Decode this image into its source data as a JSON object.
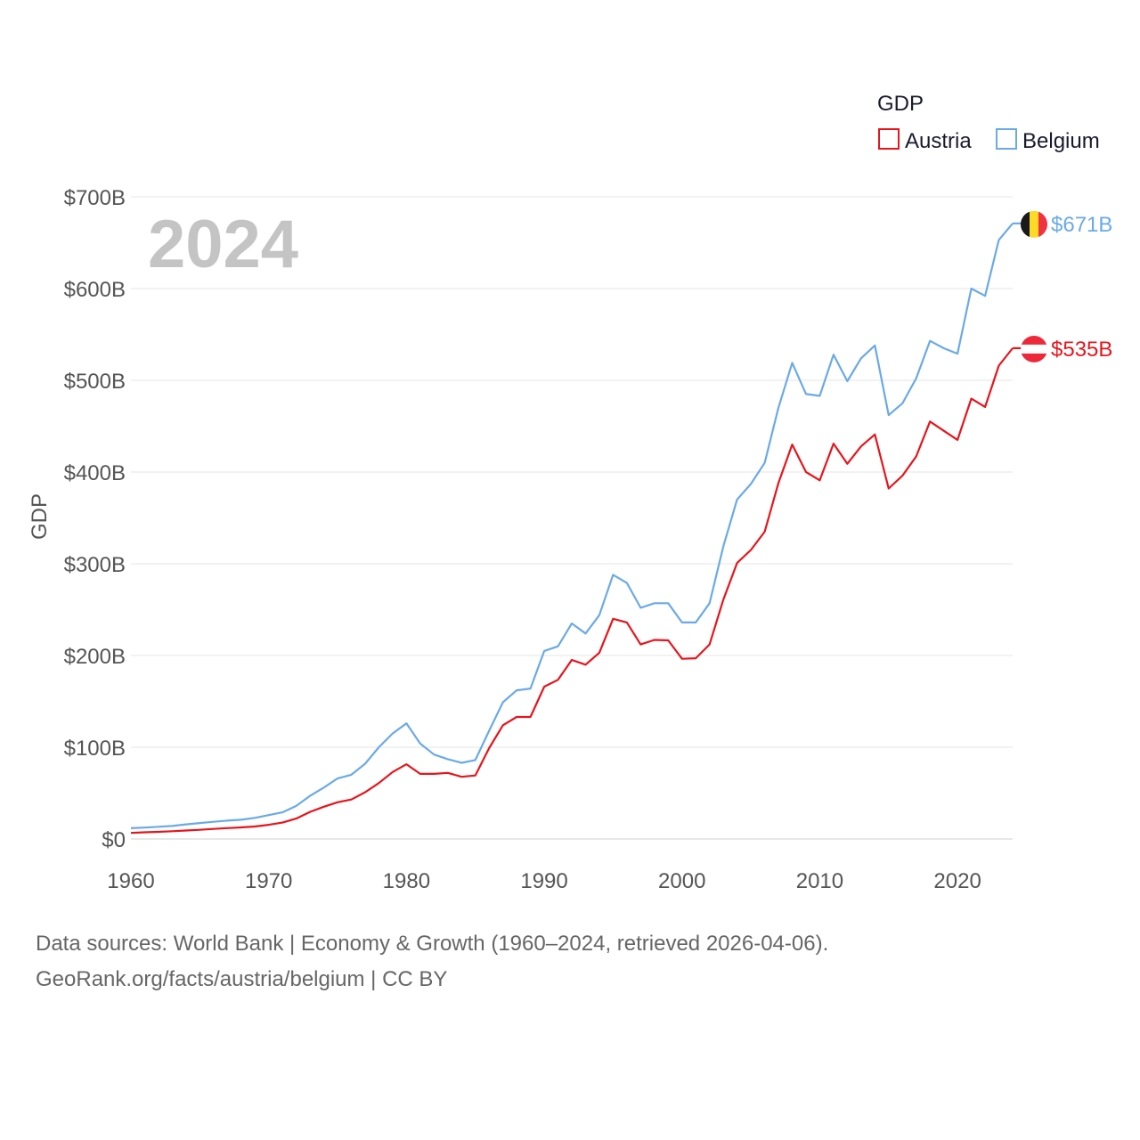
{
  "chart_data": {
    "type": "line",
    "year_label": "2024",
    "ylabel": "GDP",
    "legend": {
      "title": "GDP",
      "position": "top-right"
    },
    "x_ticks": [
      "1960",
      "1970",
      "1980",
      "1990",
      "2000",
      "2010",
      "2020"
    ],
    "y_ticks": [
      "$0",
      "$100B",
      "$200B",
      "$300B",
      "$400B",
      "$500B",
      "$600B",
      "$700B"
    ],
    "xlim": [
      1960,
      2024
    ],
    "ylim": [
      0,
      700
    ],
    "units": "billions USD",
    "x": [
      1960,
      1961,
      1962,
      1963,
      1964,
      1965,
      1966,
      1967,
      1968,
      1969,
      1970,
      1971,
      1972,
      1973,
      1974,
      1975,
      1976,
      1977,
      1978,
      1979,
      1980,
      1981,
      1982,
      1983,
      1984,
      1985,
      1986,
      1987,
      1988,
      1989,
      1990,
      1991,
      1992,
      1993,
      1994,
      1995,
      1996,
      1997,
      1998,
      1999,
      2000,
      2001,
      2002,
      2003,
      2004,
      2005,
      2006,
      2007,
      2008,
      2009,
      2010,
      2011,
      2012,
      2013,
      2014,
      2015,
      2016,
      2017,
      2018,
      2019,
      2020,
      2021,
      2022,
      2023,
      2024
    ],
    "series": [
      {
        "name": "Austria",
        "color": "#e8141c",
        "end_label": "$535B",
        "flag_icon": "austria-flag-icon",
        "values": [
          6.6,
          7.3,
          7.8,
          8.4,
          9.2,
          10.0,
          11.0,
          11.8,
          12.6,
          13.6,
          15.4,
          17.9,
          22.2,
          29.5,
          35.1,
          40.0,
          43.0,
          51.0,
          61.0,
          73.0,
          81.5,
          71.0,
          71.0,
          72.0,
          67.8,
          69.2,
          99.0,
          124.0,
          133.0,
          133.0,
          166.0,
          173.5,
          195.1,
          190.0,
          203.0,
          240.0,
          236.0,
          212.0,
          217.0,
          216.5,
          196.4,
          197.0,
          212.0,
          261.0,
          300.9,
          315.0,
          335.0,
          388.0,
          430.0,
          400.0,
          391.0,
          431.0,
          409.0,
          428.0,
          441.0,
          382.0,
          396.0,
          417.0,
          455.0,
          445.0,
          435.0,
          480.0,
          471.0,
          516.0,
          535.0
        ]
      },
      {
        "name": "Belgium",
        "color": "#6aaae6",
        "end_label": "$671B",
        "flag_icon": "belgium-flag-icon",
        "values": [
          11.7,
          12.4,
          13.3,
          14.2,
          15.9,
          17.4,
          18.7,
          20.0,
          21.0,
          23.0,
          26.0,
          29.0,
          36.0,
          47.0,
          56.0,
          66.0,
          70.0,
          82.0,
          100.0,
          115.0,
          126.0,
          104.0,
          92.0,
          87.0,
          83.0,
          86.0,
          118.0,
          149.0,
          162.0,
          164.0,
          205.0,
          210.0,
          235.0,
          224.0,
          244.0,
          288.0,
          279.0,
          252.0,
          257.0,
          257.0,
          236.0,
          236.0,
          257.0,
          319.0,
          370.0,
          387.0,
          410.0,
          470.0,
          519.0,
          485.0,
          483.0,
          528.0,
          499.0,
          524.0,
          538.0,
          462.0,
          475.0,
          502.0,
          543.0,
          535.0,
          529.0,
          600.0,
          592.0,
          653.0,
          671.0
        ]
      }
    ]
  },
  "footer": {
    "line1": "Data sources: World Bank | Economy & Growth (1960–2024, retrieved 2026-04-06).",
    "line2": "GeoRank.org/facts/austria/belgium | CC BY"
  }
}
